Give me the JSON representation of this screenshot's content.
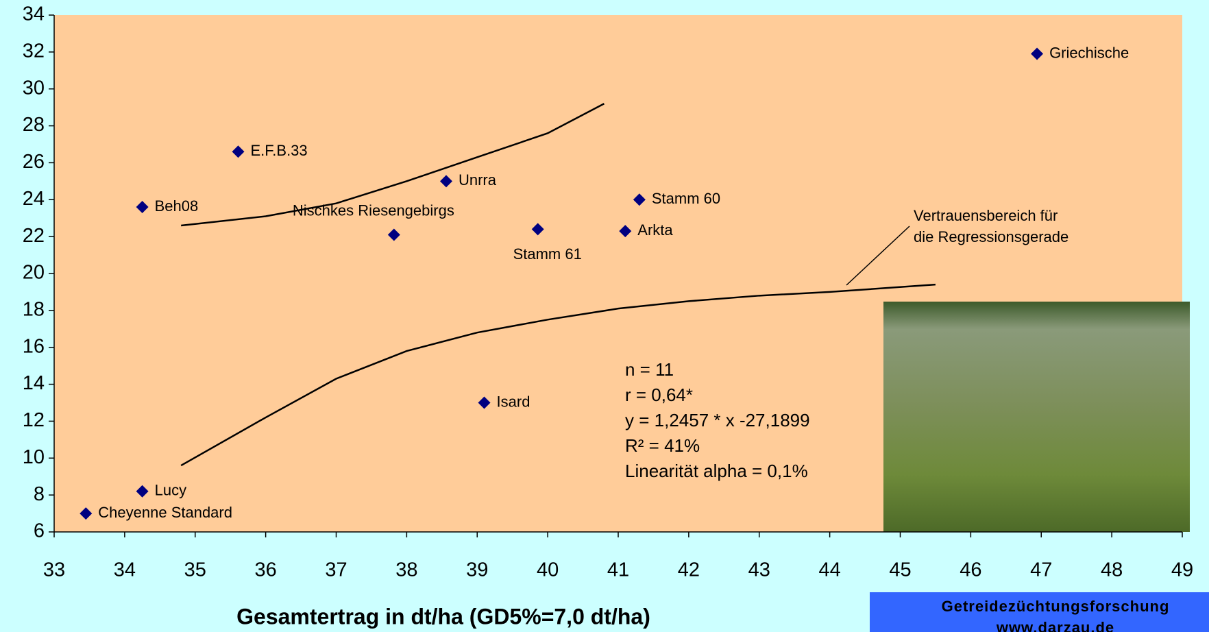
{
  "chart_data": {
    "type": "scatter",
    "x_label": "Gesamtertrag in dt/ha (GD5%=7,0 dt/ha)",
    "xlim": [
      33,
      49
    ],
    "xticks": [
      33,
      34,
      35,
      36,
      37,
      38,
      39,
      40,
      41,
      42,
      43,
      44,
      45,
      46,
      47,
      48,
      49
    ],
    "ylim": [
      6,
      34
    ],
    "yticks": [
      6,
      8,
      10,
      12,
      14,
      16,
      18,
      20,
      22,
      24,
      26,
      28,
      30,
      32,
      34
    ],
    "grid": false,
    "color": "#000080",
    "points": [
      {
        "label": "Cheyenne Standard",
        "x": 33.45,
        "y": 7.0
      },
      {
        "label": "Lucy",
        "x": 34.25,
        "y": 8.2
      },
      {
        "label": "Beh08",
        "x": 34.25,
        "y": 23.6
      },
      {
        "label": "E.F.B.33",
        "x": 35.61,
        "y": 26.6
      },
      {
        "label": "Nischkes Riesengebirgs",
        "x": 37.82,
        "y": 22.1
      },
      {
        "label": "Unrra",
        "x": 38.56,
        "y": 25.0
      },
      {
        "label": "Stamm 61",
        "x": 39.86,
        "y": 22.4
      },
      {
        "label": "Isard",
        "x": 39.1,
        "y": 13.0
      },
      {
        "label": "Arkta",
        "x": 41.1,
        "y": 22.3
      },
      {
        "label": "Stamm 60",
        "x": 41.3,
        "y": 24.0
      },
      {
        "label": "Griechische",
        "x": 46.94,
        "y": 31.9
      }
    ],
    "bands": [
      {
        "x": [
          34.8,
          36,
          37,
          38,
          39,
          40,
          40.8
        ],
        "y": [
          22.6,
          23.1,
          23.8,
          25.0,
          26.3,
          27.6,
          29.2
        ]
      },
      {
        "x": [
          34.8,
          36,
          37,
          38,
          39,
          40,
          41,
          42,
          43,
          44,
          45.5
        ],
        "y": [
          9.6,
          12.2,
          14.3,
          15.8,
          16.8,
          17.5,
          18.1,
          18.5,
          18.8,
          19.0,
          19.4
        ]
      }
    ],
    "stats": [
      "n = 11",
      "r = 0,64*",
      "y = 1,2457 * x -27,1899",
      "R² = 41%",
      "Linearität alpha = 0,1%"
    ],
    "band_note": [
      "Vertrauensbereich für",
      "die Regressionsgerade"
    ],
    "source": [
      "Getreidezüchtungsforschung",
      "www.darzau.de"
    ]
  }
}
